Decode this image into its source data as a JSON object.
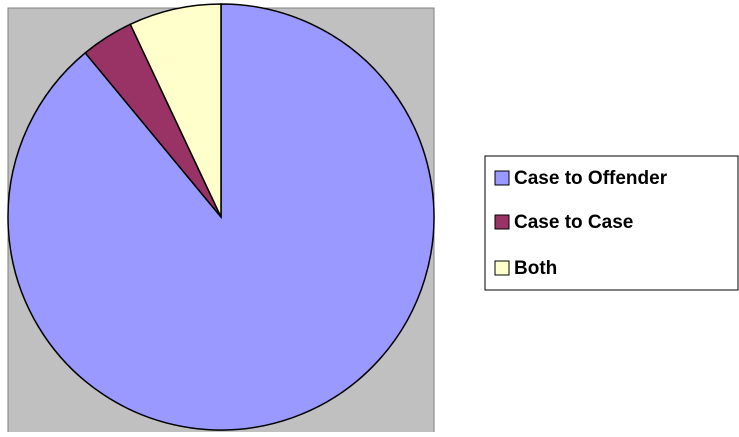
{
  "chart_data": {
    "type": "pie",
    "categories": [
      "Case to Offender",
      "Case to Case",
      "Both"
    ],
    "values": [
      89,
      4,
      7
    ],
    "colors": [
      "#9999ff",
      "#993366",
      "#ffffcc"
    ],
    "legend": "right"
  }
}
